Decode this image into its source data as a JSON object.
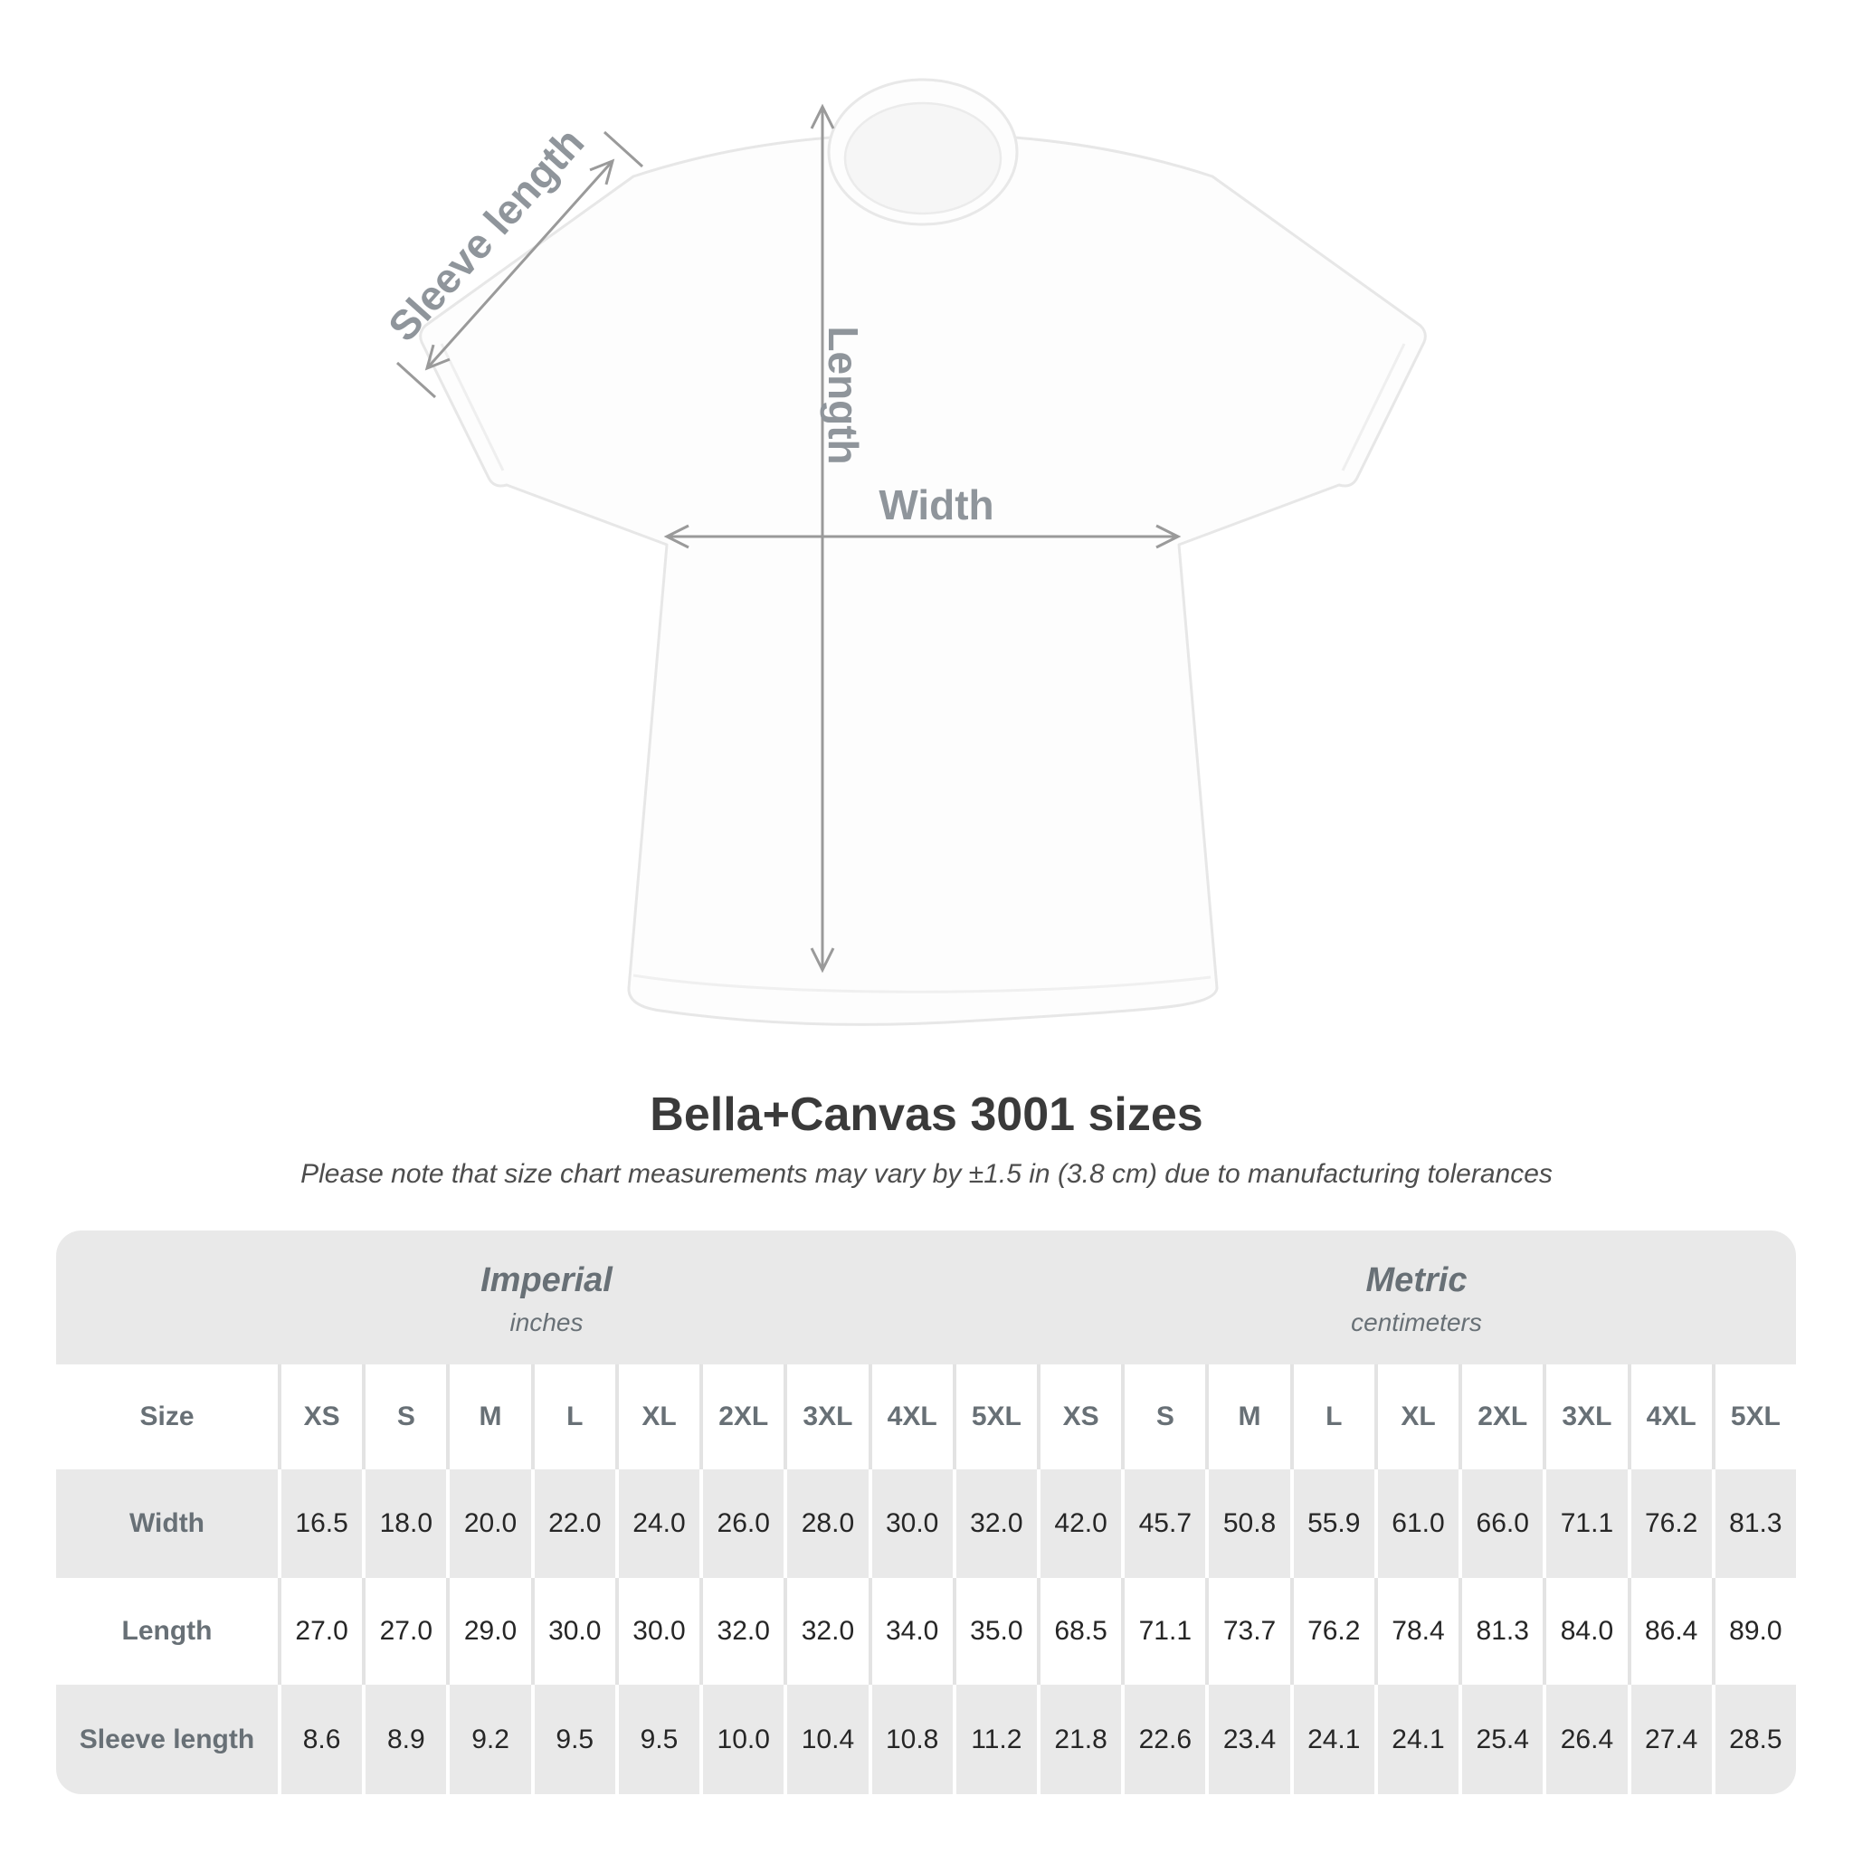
{
  "diagram": {
    "sleeve_length_label": "Sleeve length",
    "length_label": "Length",
    "width_label": "Width"
  },
  "header": {
    "title": "Bella+Canvas 3001 sizes",
    "subtitle": "Please note that size chart measurements may vary by ±1.5 in (3.8 cm) due to manufacturing tolerances"
  },
  "table": {
    "size_column_label": "Size",
    "unit_groups": [
      {
        "name": "Imperial",
        "unit": "inches"
      },
      {
        "name": "Metric",
        "unit": "centimeters"
      }
    ],
    "sizes": [
      "XS",
      "S",
      "M",
      "L",
      "XL",
      "2XL",
      "3XL",
      "4XL",
      "5XL"
    ],
    "rows": [
      {
        "label": "Width",
        "imperial": [
          "16.5",
          "18.0",
          "20.0",
          "22.0",
          "24.0",
          "26.0",
          "28.0",
          "30.0",
          "32.0"
        ],
        "metric": [
          "42.0",
          "45.7",
          "50.8",
          "55.9",
          "61.0",
          "66.0",
          "71.1",
          "76.2",
          "81.3"
        ]
      },
      {
        "label": "Length",
        "imperial": [
          "27.0",
          "27.0",
          "29.0",
          "30.0",
          "30.0",
          "32.0",
          "32.0",
          "34.0",
          "35.0"
        ],
        "metric": [
          "68.5",
          "71.1",
          "73.7",
          "76.2",
          "78.4",
          "81.3",
          "84.0",
          "86.4",
          "89.0"
        ]
      },
      {
        "label": "Sleeve length",
        "imperial": [
          "8.6",
          "8.9",
          "9.2",
          "9.5",
          "9.5",
          "10.0",
          "10.4",
          "10.8",
          "11.2"
        ],
        "metric": [
          "21.8",
          "22.6",
          "23.4",
          "24.1",
          "24.1",
          "25.4",
          "26.4",
          "27.4",
          "28.5"
        ]
      }
    ]
  },
  "colors": {
    "stripe_gray": "#e9e9e9",
    "table_label_gray": "#687076",
    "value_dark": "#262626",
    "diagram_arrow_gray": "#9a9a9a",
    "diagram_label_gray": "#8f959b",
    "title_dark": "#3a3a3a"
  },
  "chart_data": [
    {
      "type": "table",
      "title": "Imperial (inches)",
      "categories": [
        "XS",
        "S",
        "M",
        "L",
        "XL",
        "2XL",
        "3XL",
        "4XL",
        "5XL"
      ],
      "series": [
        {
          "name": "Width",
          "values": [
            16.5,
            18.0,
            20.0,
            22.0,
            24.0,
            26.0,
            28.0,
            30.0,
            32.0
          ]
        },
        {
          "name": "Length",
          "values": [
            27.0,
            27.0,
            29.0,
            30.0,
            30.0,
            32.0,
            32.0,
            34.0,
            35.0
          ]
        },
        {
          "name": "Sleeve length",
          "values": [
            8.6,
            8.9,
            9.2,
            9.5,
            9.5,
            10.0,
            10.4,
            10.8,
            11.2
          ]
        }
      ]
    },
    {
      "type": "table",
      "title": "Metric (centimeters)",
      "categories": [
        "XS",
        "S",
        "M",
        "L",
        "XL",
        "2XL",
        "3XL",
        "4XL",
        "5XL"
      ],
      "series": [
        {
          "name": "Width",
          "values": [
            42.0,
            45.7,
            50.8,
            55.9,
            61.0,
            66.0,
            71.1,
            76.2,
            81.3
          ]
        },
        {
          "name": "Length",
          "values": [
            68.5,
            71.1,
            73.7,
            76.2,
            78.4,
            81.3,
            84.0,
            86.4,
            89.0
          ]
        },
        {
          "name": "Sleeve length",
          "values": [
            21.8,
            22.6,
            23.4,
            24.1,
            24.1,
            25.4,
            26.4,
            27.4,
            28.5
          ]
        }
      ]
    }
  ]
}
